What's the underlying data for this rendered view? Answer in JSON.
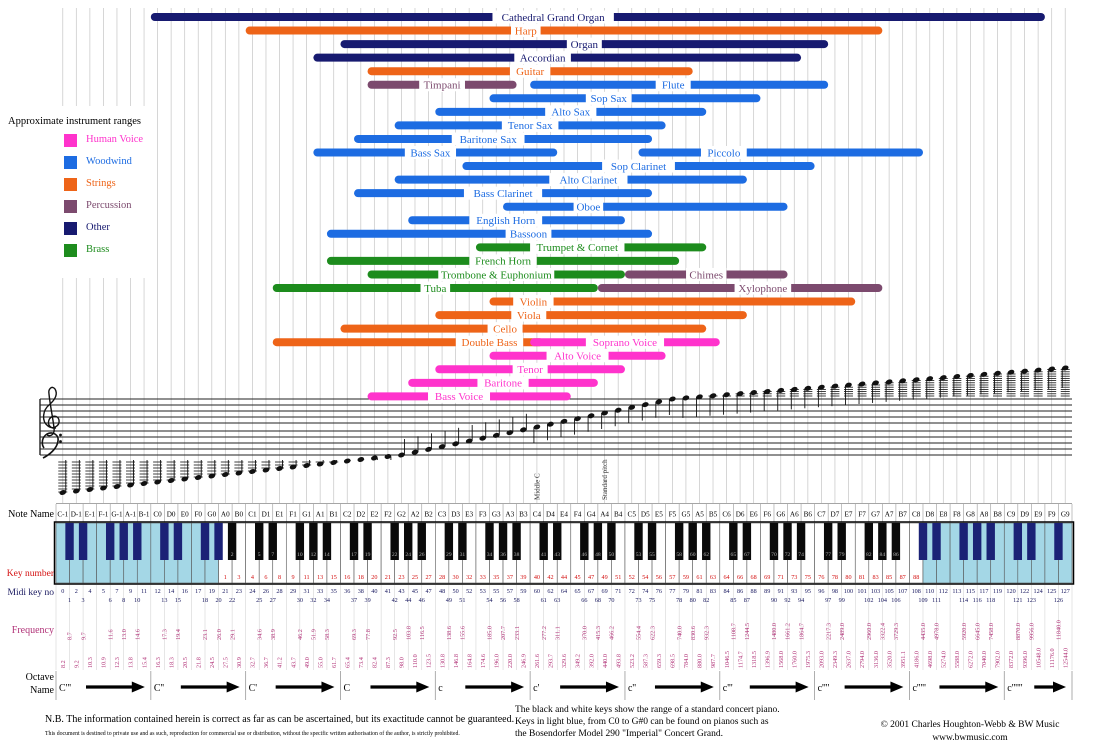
{
  "title": "Approximate instrument ranges",
  "palette": {
    "voice": "#ff33cc",
    "woodwind": "#1d6ce2",
    "strings": "#ee6418",
    "percussion": "#7c4a6e",
    "other": "#171a70",
    "brass": "#1d8c1d",
    "key_number_red": "#d41111",
    "midi_navy": "#191960",
    "frequency_magenta": "#b13378",
    "extended_white_key": "#a4d7e6",
    "extended_black_key": "#1b2276",
    "gridline": "#c9c9c9"
  },
  "legend": {
    "items": [
      {
        "label": "Human Voice",
        "family": "voice"
      },
      {
        "label": "Woodwind",
        "family": "woodwind"
      },
      {
        "label": "Strings",
        "family": "strings"
      },
      {
        "label": "Percussion",
        "family": "percussion"
      },
      {
        "label": "Other",
        "family": "other"
      },
      {
        "label": "Brass",
        "family": "brass"
      }
    ]
  },
  "chart_data": {
    "type": "range_bars",
    "title": "Approximate instrument ranges",
    "x_unit": "musical pitch, white keys C-1 to G9",
    "x_range": [
      "C-1",
      "G9"
    ],
    "instruments": [
      {
        "name": "Cathedral Grand Organ",
        "family": "other",
        "from": "C0",
        "to": "E9",
        "row": 0,
        "label_pos": 0.45
      },
      {
        "name": "Harp",
        "family": "strings",
        "from": "C1",
        "to": "G7",
        "row": 1,
        "label_pos": 0.44
      },
      {
        "name": "Organ",
        "family": "other",
        "from": "C2",
        "to": "C7",
        "row": 2,
        "label_pos": 0.5
      },
      {
        "name": "Accordian",
        "family": "other",
        "from": "A1",
        "to": "A6",
        "row": 3,
        "label_pos": 0.47
      },
      {
        "name": "Guitar",
        "family": "strings",
        "from": "E2",
        "to": "G5",
        "row": 4,
        "label_pos": 0.5
      },
      {
        "name": "Timpani",
        "family": "percussion",
        "from": "E2",
        "to": "A3",
        "row": 5,
        "label_pos": 0.5
      },
      {
        "name": "Flute",
        "family": "woodwind",
        "from": "C4",
        "to": "C7",
        "row": 5,
        "label_pos": 0.48
      },
      {
        "name": "Sop Sax",
        "family": "woodwind",
        "from": "G3",
        "to": "E6",
        "row": 6,
        "label_pos": 0.44
      },
      {
        "name": "Alto Sax",
        "family": "woodwind",
        "from": "C3",
        "to": "A5",
        "row": 7,
        "label_pos": 0.5
      },
      {
        "name": "Tenor Sax",
        "family": "woodwind",
        "from": "G2",
        "to": "E5",
        "row": 8,
        "label_pos": 0.5
      },
      {
        "name": "Baritone Sax",
        "family": "woodwind",
        "from": "D2",
        "to": "D5",
        "row": 9,
        "label_pos": 0.45
      },
      {
        "name": "Bass Sax",
        "family": "woodwind",
        "from": "A1",
        "to": "D4",
        "row": 10,
        "label_pos": 0.48
      },
      {
        "name": "Piccolo",
        "family": "woodwind",
        "from": "D5",
        "to": "C8",
        "row": 10,
        "label_pos": 0.3
      },
      {
        "name": "Sop Clarinet",
        "family": "woodwind",
        "from": "E3",
        "to": "B6",
        "row": 11,
        "label_pos": 0.5
      },
      {
        "name": "Alto Clarinet",
        "family": "woodwind",
        "from": "G2",
        "to": "D6",
        "row": 12,
        "label_pos": 0.55
      },
      {
        "name": "Bass Clarinet",
        "family": "woodwind",
        "from": "D2",
        "to": "D5",
        "row": 13,
        "label_pos": 0.5
      },
      {
        "name": "Oboe",
        "family": "woodwind",
        "from": "A3",
        "to": "G6",
        "row": 14,
        "label_pos": 0.3
      },
      {
        "name": "English Horn",
        "family": "woodwind",
        "from": "A2",
        "to": "B4",
        "row": 15,
        "label_pos": 0.45
      },
      {
        "name": "Bassoon",
        "family": "woodwind",
        "from": "B1",
        "to": "D5",
        "row": 16,
        "label_pos": 0.62
      },
      {
        "name": "Trumpet & Cornet",
        "family": "brass",
        "from": "F3",
        "to": "A5",
        "row": 17,
        "label_pos": 0.44
      },
      {
        "name": "French Horn",
        "family": "brass",
        "from": "B1",
        "to": "F5",
        "row": 18,
        "label_pos": 0.5
      },
      {
        "name": "Trombone & Euphonium",
        "family": "brass",
        "from": "E2",
        "to": "B4",
        "row": 19,
        "label_pos": 0.5
      },
      {
        "name": "Chimes",
        "family": "percussion",
        "from": "C5",
        "to": "G6",
        "row": 19,
        "label_pos": 0.5
      },
      {
        "name": "Tuba",
        "family": "brass",
        "from": "E1",
        "to": "G4",
        "row": 20,
        "label_pos": 0.5
      },
      {
        "name": "Xylophone",
        "family": "percussion",
        "from": "A4",
        "to": "G7",
        "row": 20,
        "label_pos": 0.58
      },
      {
        "name": "Violin",
        "family": "strings",
        "from": "G3",
        "to": "E7",
        "row": 21,
        "label_pos": 0.12
      },
      {
        "name": "Viola",
        "family": "strings",
        "from": "C3",
        "to": "D6",
        "row": 22,
        "label_pos": 0.3
      },
      {
        "name": "Cello",
        "family": "strings",
        "from": "C2",
        "to": "A5",
        "row": 23,
        "label_pos": 0.45
      },
      {
        "name": "Double Bass",
        "family": "strings",
        "from": "E1",
        "to": "C4",
        "row": 24,
        "label_pos": 0.8
      },
      {
        "name": "Soprano Voice",
        "family": "voice",
        "from": "C4",
        "to": "B5",
        "row": 24,
        "label_pos": 0.5
      },
      {
        "name": "Alto Voice",
        "family": "voice",
        "from": "G3",
        "to": "E5",
        "row": 25,
        "label_pos": 0.5
      },
      {
        "name": "Tenor",
        "family": "voice",
        "from": "C3",
        "to": "B4",
        "row": 26,
        "label_pos": 0.5
      },
      {
        "name": "Baritone",
        "family": "voice",
        "from": "A2",
        "to": "G4",
        "row": 27,
        "label_pos": 0.5
      },
      {
        "name": "Bass Voice",
        "family": "voice",
        "from": "E2",
        "to": "E4",
        "row": 28,
        "label_pos": 0.45
      }
    ]
  },
  "keyboard": {
    "note_names": [
      "C-1",
      "D-1",
      "E-1",
      "F-1",
      "G-1",
      "A-1",
      "B-1",
      "C0",
      "D0",
      "E0",
      "F0",
      "G0",
      "A0",
      "B0",
      "C1",
      "D1",
      "E1",
      "F1",
      "G1",
      "A1",
      "B1",
      "C2",
      "D2",
      "E2",
      "F2",
      "G2",
      "A2",
      "B2",
      "C3",
      "D3",
      "E3",
      "F3",
      "G3",
      "A3",
      "B3",
      "C4",
      "D4",
      "E4",
      "F4",
      "G4",
      "A4",
      "B4",
      "C5",
      "D5",
      "E5",
      "F5",
      "G5",
      "A5",
      "B5",
      "C6",
      "D6",
      "E6",
      "F6",
      "G6",
      "A6",
      "B6",
      "C7",
      "D7",
      "E7",
      "F7",
      "G7",
      "A7",
      "B7",
      "C8",
      "D8",
      "E8",
      "F8",
      "G8",
      "A8",
      "B8",
      "C9",
      "D9",
      "E9",
      "F9",
      "G9"
    ],
    "octave_names": [
      "C'''",
      "C''",
      "C'",
      "C",
      "c",
      "c'",
      "c''",
      "c'''",
      "c''''",
      "c'''''",
      "c''''''"
    ],
    "midi_range": [
      0,
      127
    ],
    "key_numbers": {
      "range": [
        1,
        88
      ],
      "first_key": "A0",
      "last_key": "C8"
    },
    "special_marks": [
      {
        "note": "C4",
        "label": "Middle C"
      },
      {
        "note": "A4",
        "label": "Standard pitch"
      }
    ],
    "frequencies_hz": [
      8.2,
      8.7,
      9.2,
      9.7,
      10.3,
      10.9,
      11.6,
      12.3,
      13.0,
      13.8,
      14.6,
      15.4,
      16.3,
      17.3,
      18.3,
      19.4,
      20.5,
      21.8,
      23.1,
      24.5,
      26.0,
      27.5,
      29.1,
      30.9,
      32.7,
      34.6,
      36.7,
      38.9,
      41.2,
      43.7,
      46.2,
      49.0,
      51.9,
      55.0,
      58.3,
      61.7,
      65.4,
      69.3,
      73.4,
      77.8,
      82.4,
      87.3,
      92.5,
      98.0,
      103.8,
      110.0,
      116.5,
      123.5,
      130.8,
      138.6,
      146.8,
      155.6,
      164.8,
      174.6,
      185.0,
      196.0,
      207.7,
      220.0,
      233.1,
      246.9,
      261.6,
      277.2,
      293.7,
      311.1,
      329.6,
      349.2,
      370.0,
      392.0,
      415.3,
      440.0,
      466.2,
      493.8,
      523.2,
      554.4,
      587.3,
      622.3,
      659.3,
      698.5,
      740.0,
      784.0,
      830.6,
      880.0,
      932.3,
      987.7,
      1046.5,
      1108.7,
      1174.7,
      1244.5,
      1318.5,
      1396.9,
      1480.0,
      1568.0,
      1661.2,
      1760.0,
      1864.7,
      1975.3,
      2093.0,
      2217.3,
      2349.3,
      2489.0,
      2637.0,
      2794.0,
      2960.0,
      3136.0,
      3322.4,
      3520.0,
      3729.3,
      3951.1,
      4186.0,
      4435.0,
      4698.0,
      4978.0,
      5274.0,
      5588.0,
      5920.0,
      6272.0,
      6645.0,
      7040.0,
      7458.0,
      7902.0,
      8372.0,
      8870.0,
      9396.0,
      9956.0,
      10548.0,
      11176.0,
      11840.0,
      12544.0
    ]
  },
  "labels": {
    "note_name": "Note Name",
    "key_number": "Key number",
    "midi": "Midi key no",
    "frequency": "Frequency",
    "octave_line1": "Octave",
    "octave_line2": "Name"
  },
  "footer": {
    "nb": "N.B. The information contained herein is correct as far as can be ascertained, but its exactitude cannot be guaranteed.",
    "nb_small": "This document is destined to private use and as such, reproduction for commercial use or distribution, without the specific written authorisation of the author, is strictly prohibited.",
    "piano_note_1": "The black and white keys show the range of a standard concert piano.",
    "piano_note_2": "Keys in light blue, from C0 to G#0 can be found on pianos such as",
    "piano_note_3": "the Bosendorfer Model 290 \"Imperial\" Concert Grand.",
    "copyright": "© 2001 Charles Houghton-Webb & BW Music",
    "website": "www.bwmusic.com"
  }
}
